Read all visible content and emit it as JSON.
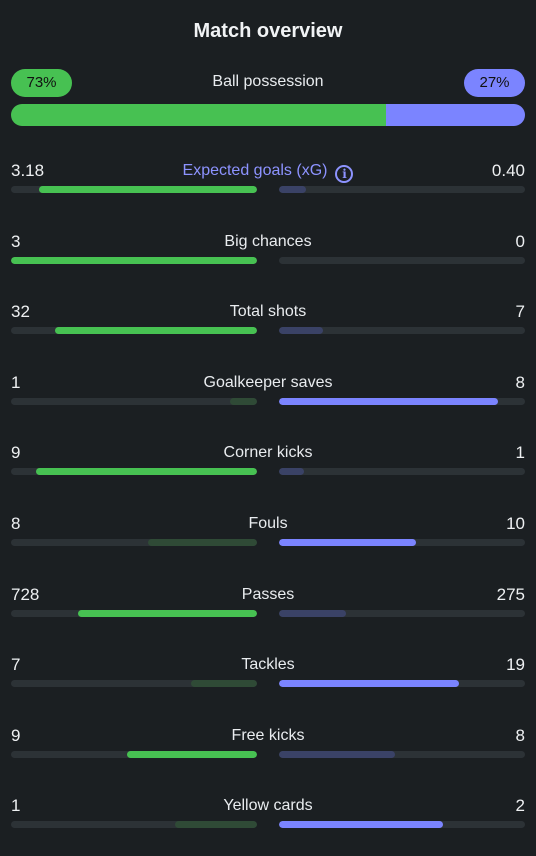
{
  "title": "Match overview",
  "possession": {
    "label": "Ball possession",
    "home": "73%",
    "away": "27%",
    "home_value": 73,
    "away_value": 27,
    "home_color": "#47c152",
    "away_color": "#7b84ff"
  },
  "colors": {
    "home_win": "#47c152",
    "home_lose": "#2f4a36",
    "away_win": "#7b84ff",
    "away_lose": "#3a4266",
    "track": "#2c3236"
  },
  "stats": [
    {
      "key": "xg",
      "label": "Expected goals (xG)",
      "home": "3.18",
      "away": "0.40",
      "home_value": 3.18,
      "away_value": 0.4,
      "info": true
    },
    {
      "key": "big-chances",
      "label": "Big chances",
      "home": "3",
      "away": "0",
      "home_value": 3,
      "away_value": 0
    },
    {
      "key": "total-shots",
      "label": "Total shots",
      "home": "32",
      "away": "7",
      "home_value": 32,
      "away_value": 7
    },
    {
      "key": "goalkeeper-saves",
      "label": "Goalkeeper saves",
      "home": "1",
      "away": "8",
      "home_value": 1,
      "away_value": 8
    },
    {
      "key": "corner-kicks",
      "label": "Corner kicks",
      "home": "9",
      "away": "1",
      "home_value": 9,
      "away_value": 1
    },
    {
      "key": "fouls",
      "label": "Fouls",
      "home": "8",
      "away": "10",
      "home_value": 8,
      "away_value": 10
    },
    {
      "key": "passes",
      "label": "Passes",
      "home": "728",
      "away": "275",
      "home_value": 728,
      "away_value": 275
    },
    {
      "key": "tackles",
      "label": "Tackles",
      "home": "7",
      "away": "19",
      "home_value": 7,
      "away_value": 19
    },
    {
      "key": "free-kicks",
      "label": "Free kicks",
      "home": "9",
      "away": "8",
      "home_value": 9,
      "away_value": 8
    },
    {
      "key": "yellow-cards",
      "label": "Yellow cards",
      "home": "1",
      "away": "2",
      "home_value": 1,
      "away_value": 2
    }
  ]
}
